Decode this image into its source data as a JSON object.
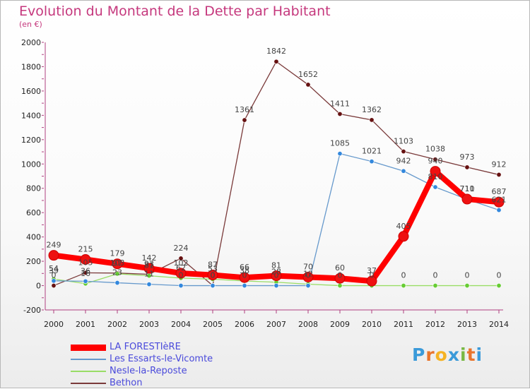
{
  "chart_data": {
    "type": "line",
    "title": "Evolution du Montant de la Dette par Habitant",
    "subtitle": "(en €)",
    "x": [
      2000,
      2001,
      2002,
      2003,
      2004,
      2005,
      2006,
      2007,
      2008,
      2009,
      2010,
      2011,
      2012,
      2013,
      2014
    ],
    "yticks": [
      -200,
      0,
      200,
      400,
      600,
      800,
      1000,
      1200,
      1400,
      1600,
      1800,
      2000
    ],
    "ylim": [
      -200,
      2000
    ],
    "xlabel": "",
    "ylabel": "",
    "series": [
      {
        "name": "LA FORESTIèRE",
        "color": "#ff0000",
        "marker": "#ee1111",
        "values": [
          249,
          215,
          179,
          142,
          102,
          87,
          66,
          81,
          70,
          60,
          37,
          405,
          940,
          711,
          687
        ],
        "labels": [
          "249",
          "215",
          "179",
          "142",
          "102",
          "87",
          "66",
          "81",
          "70",
          "60",
          "37",
          "405",
          "940",
          "711",
          "687"
        ]
      },
      {
        "name": "Les Essarts-le-Vicomte",
        "color": "#6699cc",
        "marker": "#3388dd",
        "values": [
          39,
          36,
          23,
          11,
          0,
          0,
          0,
          0,
          0,
          1085,
          1021,
          942,
          810,
          710,
          621
        ],
        "labels": [
          "39",
          "36",
          "23",
          "11",
          "0",
          "0",
          "0",
          "0",
          "0",
          "1085",
          "1021",
          "942",
          "810",
          "710",
          "621"
        ]
      },
      {
        "name": "Nesle-la-Reposte",
        "color": "#99dd66",
        "marker": "#66cc33",
        "values": [
          54,
          16,
          97,
          81,
          62,
          53,
          38,
          28,
          12,
          0,
          0,
          0,
          0,
          0,
          0
        ],
        "labels": [
          "54",
          "16",
          "97",
          "81",
          "62",
          "53",
          "38",
          "28",
          "12",
          "0",
          "0",
          "0",
          "0",
          "0",
          "0"
        ]
      },
      {
        "name": "Bethon",
        "color": "#7a3a3a",
        "marker": "#661111",
        "values": [
          0,
          105,
          103,
          93,
          224,
          0,
          1361,
          1842,
          1652,
          1411,
          1362,
          1103,
          1038,
          973,
          912
        ],
        "labels": [
          "0",
          "105",
          "103",
          "93",
          "224",
          "0",
          "1361",
          "1842",
          "1652",
          "1411",
          "1362",
          "1103",
          "1038",
          "973",
          "912"
        ]
      }
    ],
    "legend_position": "bottom-left"
  },
  "logo": {
    "letters": [
      "P",
      "r",
      "o",
      "x",
      "i",
      "t",
      "i"
    ],
    "colors": [
      "#3a9ad9",
      "#e8742c",
      "#f5b324",
      "#3a9ad9",
      "#78b843",
      "#e8742c",
      "#3a9ad9"
    ]
  }
}
